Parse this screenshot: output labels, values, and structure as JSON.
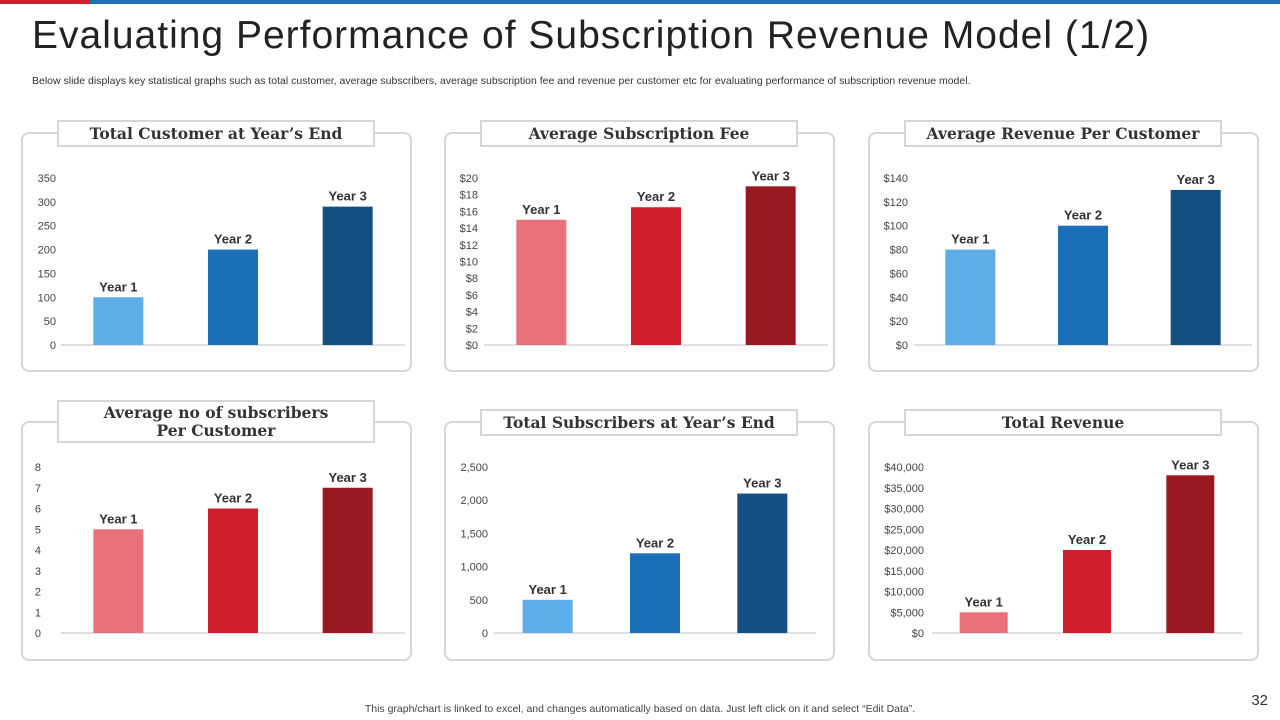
{
  "slide": {
    "title": "Evaluating Performance of Subscription Revenue Model (1/2)",
    "subtitle": "Below slide displays key statistical graphs such as total customer, average subscribers, average subscription fee and revenue per customer etc for evaluating performance of subscription revenue model.",
    "footer": "This graph/chart is linked to excel,  and changes automatically based on data. Just left click on it and select “Edit Data”.",
    "page_number": "32"
  },
  "colors": {
    "light_blue": "#5dade8",
    "mid_blue": "#1a6fb8",
    "dark_blue": "#124f82",
    "pink": "#e9717a",
    "red": "#cf1f2c",
    "dark_red": "#9a1820"
  },
  "chart_data": [
    {
      "type": "bar",
      "title": "Total Customer at Year’s End",
      "categories": [
        "Year 1",
        "Year 2",
        "Year 3"
      ],
      "values": [
        100,
        200,
        290
      ],
      "ylim": [
        0,
        350
      ],
      "yticks": [
        "0",
        "50",
        "100",
        "150",
        "200",
        "250",
        "300",
        "350"
      ],
      "bar_colors": [
        "#5dade8",
        "#1a6fb8",
        "#124f82"
      ],
      "grid": false
    },
    {
      "type": "bar",
      "title": "Average Subscription  Fee",
      "categories": [
        "Year 1",
        "Year 2",
        "Year 3"
      ],
      "values": [
        15,
        16.5,
        19
      ],
      "ylim": [
        0,
        20
      ],
      "yticks": [
        "$0",
        "$2",
        "$4",
        "$6",
        "$8",
        "$10",
        "$12",
        "$14",
        "$16",
        "$18",
        "$20"
      ],
      "bar_colors": [
        "#e9717a",
        "#cf1f2c",
        "#9a1820"
      ],
      "grid": false
    },
    {
      "type": "bar",
      "title": "Average Revenue Per Customer",
      "categories": [
        "Year 1",
        "Year 2",
        "Year 3"
      ],
      "values": [
        80,
        100,
        130
      ],
      "ylim": [
        0,
        140
      ],
      "yticks": [
        "$0",
        "$20",
        "$40",
        "$60",
        "$80",
        "$100",
        "$120",
        "$140"
      ],
      "bar_colors": [
        "#5dade8",
        "#1a6fb8",
        "#124f82"
      ],
      "grid": false
    },
    {
      "type": "bar",
      "title": "Average no of subscribers\nPer Customer",
      "categories": [
        "Year 1",
        "Year 2",
        "Year 3"
      ],
      "values": [
        5,
        6,
        7
      ],
      "ylim": [
        0,
        8
      ],
      "yticks": [
        "0",
        "1",
        "2",
        "3",
        "4",
        "5",
        "6",
        "7",
        "8"
      ],
      "bar_colors": [
        "#e9717a",
        "#cf1f2c",
        "#9a1820"
      ],
      "grid": false
    },
    {
      "type": "bar",
      "title": "Total Subscribers at Year’s End",
      "categories": [
        "Year 1",
        "Year 2",
        "Year 3"
      ],
      "values": [
        500,
        1200,
        2100
      ],
      "ylim": [
        0,
        2500
      ],
      "yticks": [
        "0",
        "500",
        "1,000",
        "1,500",
        "2,000",
        "2,500"
      ],
      "bar_colors": [
        "#5dade8",
        "#1a6fb8",
        "#124f82"
      ],
      "grid": false
    },
    {
      "type": "bar",
      "title": "Total Revenue",
      "categories": [
        "Year 1",
        "Year 2",
        "Year 3"
      ],
      "values": [
        5000,
        20000,
        38000
      ],
      "ylim": [
        0,
        40000
      ],
      "yticks": [
        "$0",
        "$5,000",
        "$10,000",
        "$15,000",
        "$20,000",
        "$25,000",
        "$30,000",
        "$35,000",
        "$40,000"
      ],
      "bar_colors": [
        "#e9717a",
        "#cf1f2c",
        "#9a1820"
      ],
      "grid": false
    }
  ]
}
